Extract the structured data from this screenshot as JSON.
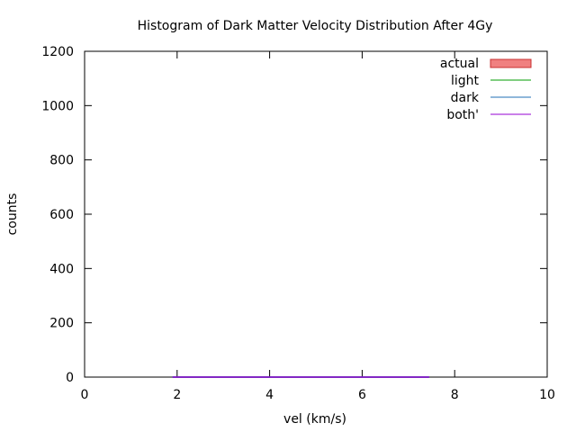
{
  "chart_data": {
    "type": "bar",
    "title": "Histogram of Dark Matter Velocity Distribution After 4Gy",
    "xlabel": "vel (km/s)",
    "ylabel": "counts",
    "xlim": [
      0,
      10
    ],
    "ylim": [
      0,
      1200
    ],
    "xticks": [
      0,
      2,
      4,
      6,
      8,
      10
    ],
    "yticks": [
      0,
      200,
      400,
      600,
      800,
      1000,
      1200
    ],
    "grid": false,
    "legend_position": "top-right",
    "series": [
      {
        "name": "actual",
        "style": "filled-bars",
        "fill": "#f08080",
        "stroke": "#c83030",
        "x": [],
        "values": []
      },
      {
        "name": "light",
        "style": "line",
        "color": "#009e00",
        "x": [
          1.9,
          7.45
        ],
        "values": [
          0,
          0
        ]
      },
      {
        "name": "dark",
        "style": "line",
        "color": "#1f6fb4",
        "x": [
          1.9,
          7.45
        ],
        "values": [
          0,
          0
        ]
      },
      {
        "name": "both'",
        "style": "line",
        "color": "#9400d3",
        "x": [
          1.9,
          7.45
        ],
        "values": [
          0,
          0
        ]
      }
    ]
  }
}
